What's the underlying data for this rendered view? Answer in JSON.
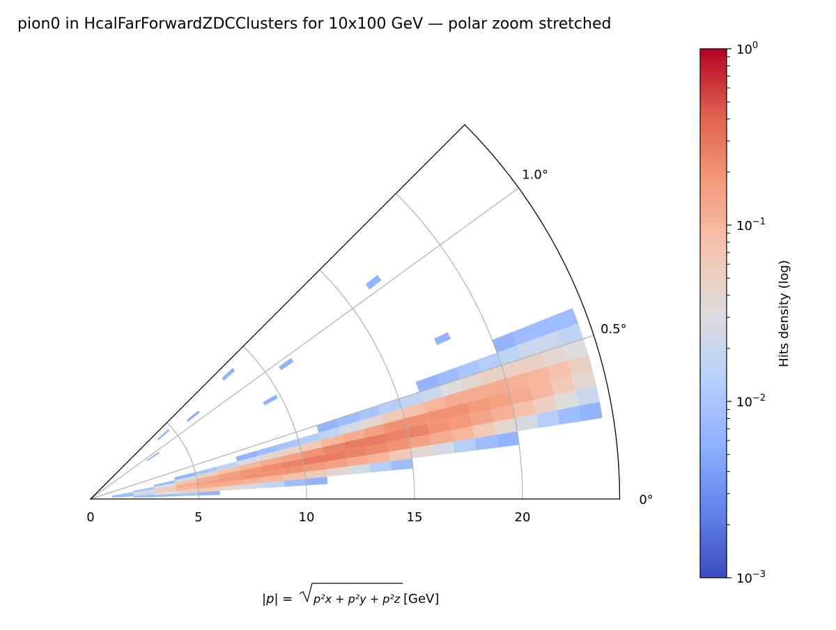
{
  "chart_data": {
    "type": "heatmap",
    "projection": "polar",
    "title": "pion0 in HcalFarForwardZDCClusters for 10x100 GeV — polar zoom stretched",
    "xlabel": "|p| = √(px² + py² + pz²) [GeV]",
    "xlabel_parts": {
      "lhs": "|p| = ",
      "sum": "p²x + p²y + p²z",
      "unit": " [GeV]"
    },
    "r_range": [
      0,
      24.5
    ],
    "theta_range_deg": [
      0,
      1.25
    ],
    "r_ticks": [
      0,
      5,
      10,
      15,
      20
    ],
    "r_tick_labels": [
      "0",
      "5",
      "10",
      "15",
      "20"
    ],
    "theta_ticks_deg": [
      0,
      0.5,
      1.0
    ],
    "theta_tick_labels": [
      "0°",
      "0.5°",
      "1.0°"
    ],
    "grid": true,
    "r_bin_edges_start": 1,
    "r_bin_width": 1,
    "theta_bin_start_deg": 0.05,
    "theta_bin_width_deg": 0.05,
    "log10_density": [
      [
        null,
        -2.2,
        -2.1,
        -2.2,
        null,
        null,
        null,
        null,
        null,
        null,
        null
      ],
      [
        -2.2,
        -1.8,
        -1.6,
        -1.7,
        -2.1,
        null,
        null,
        null,
        null,
        null,
        null
      ],
      [
        -2.1,
        -1.5,
        -1.2,
        -1.2,
        -1.5,
        -2.1,
        null,
        null,
        null,
        null,
        null
      ],
      [
        -2.0,
        -1.3,
        -1.0,
        -0.9,
        -1.1,
        -1.6,
        -2.2,
        null,
        null,
        null,
        null
      ],
      [
        -2.2,
        -1.2,
        -0.9,
        -0.8,
        -0.9,
        -1.3,
        -2.0,
        null,
        null,
        null,
        null
      ],
      [
        null,
        -1.4,
        -0.9,
        -0.75,
        -0.8,
        -1.1,
        -1.8,
        null,
        null,
        null,
        null
      ],
      [
        null,
        -1.6,
        -0.95,
        -0.7,
        -0.7,
        -1.0,
        -1.6,
        -2.2,
        null,
        null,
        null
      ],
      [
        null,
        -1.8,
        -1.0,
        -0.7,
        -0.65,
        -0.9,
        -1.4,
        -2.1,
        null,
        null,
        null
      ],
      [
        null,
        -2.1,
        -1.1,
        -0.7,
        -0.6,
        -0.8,
        -1.3,
        -2.0,
        null,
        null,
        null
      ],
      [
        null,
        -2.2,
        -1.2,
        -0.75,
        -0.55,
        -0.7,
        -1.2,
        -1.9,
        null,
        null,
        null
      ],
      [
        null,
        null,
        -1.4,
        -0.8,
        -0.55,
        -0.6,
        -1.0,
        -1.8,
        -2.2,
        null,
        null
      ],
      [
        null,
        null,
        -1.6,
        -0.9,
        -0.6,
        -0.55,
        -0.9,
        -1.6,
        -2.1,
        null,
        null
      ],
      [
        null,
        null,
        -1.9,
        -1.0,
        -0.65,
        -0.55,
        -0.8,
        -1.4,
        -2.0,
        null,
        null
      ],
      [
        null,
        null,
        -2.1,
        -1.2,
        -0.7,
        -0.6,
        -0.7,
        -1.2,
        -1.9,
        null,
        null
      ],
      [
        null,
        null,
        null,
        -1.4,
        -0.8,
        -0.6,
        -0.7,
        -1.1,
        -1.8,
        null,
        null
      ],
      [
        null,
        null,
        null,
        -1.6,
        -0.9,
        -0.7,
        -0.7,
        -1.0,
        -1.7,
        -2.2,
        null
      ],
      [
        null,
        null,
        null,
        -1.9,
        -1.0,
        -0.75,
        -0.7,
        -0.9,
        -1.5,
        -2.1,
        null
      ],
      [
        null,
        null,
        null,
        -2.1,
        -1.2,
        -0.85,
        -0.75,
        -0.9,
        -1.4,
        -2.0,
        null
      ],
      [
        null,
        null,
        null,
        -2.2,
        -1.4,
        -0.95,
        -0.8,
        -0.9,
        -1.3,
        -1.9,
        null
      ],
      [
        null,
        null,
        null,
        null,
        -1.6,
        -1.1,
        -0.9,
        -0.95,
        -1.3,
        -1.8,
        -2.2
      ],
      [
        null,
        null,
        null,
        null,
        -1.9,
        -1.3,
        -1.0,
        -1.0,
        -1.3,
        -1.7,
        -2.1
      ],
      [
        null,
        null,
        null,
        null,
        -2.1,
        -1.5,
        -1.2,
        -1.1,
        -1.4,
        -1.7,
        -2.1
      ],
      [
        null,
        null,
        null,
        null,
        -2.2,
        -1.7,
        -1.4,
        -1.3,
        -1.5,
        -1.8,
        -2.1
      ]
    ],
    "outliers": [
      {
        "r": 16.5,
        "theta_deg": 1.04,
        "log10_density": -2.2
      },
      {
        "r": 17.9,
        "theta_deg": 0.68,
        "log10_density": -2.2
      },
      {
        "r": 11.0,
        "theta_deg": 0.96,
        "log10_density": -2.2
      },
      {
        "r": 8.6,
        "theta_deg": 1.17,
        "log10_density": -2.2
      },
      {
        "r": 6.1,
        "theta_deg": 1.08,
        "log10_density": -2.2
      },
      {
        "r": 9.5,
        "theta_deg": 0.8,
        "log10_density": -2.2
      },
      {
        "r": 4.5,
        "theta_deg": 1.15,
        "log10_density": -2.2
      },
      {
        "r": 3.5,
        "theta_deg": 0.95,
        "log10_density": -2.2
      }
    ],
    "colorbar": {
      "label": "Hits density (log)",
      "scale": "log",
      "range": [
        0.001,
        1
      ],
      "ticks_log10": [
        0,
        -1,
        -2,
        -3
      ],
      "tick_bases": [
        "10",
        "10",
        "10",
        "10"
      ],
      "tick_exponents": [
        "0",
        "−1",
        "−2",
        "−3"
      ],
      "colormap": "coolwarm"
    }
  }
}
